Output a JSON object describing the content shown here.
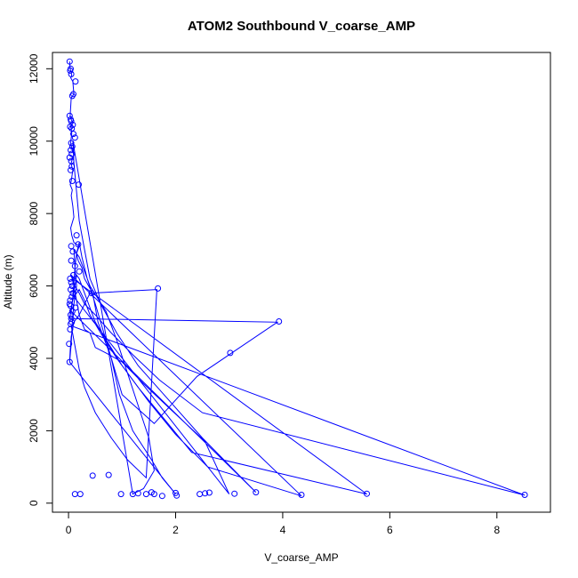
{
  "chart_data": {
    "type": "line",
    "title": "ATOM2 Southbound V_coarse_AMP",
    "xlabel": "V_coarse_AMP",
    "ylabel": "Altitude (m)",
    "xlim": [
      -0.3,
      9.0
    ],
    "ylim": [
      -250,
      12450
    ],
    "xticks": [
      0,
      2,
      4,
      6,
      8
    ],
    "yticks": [
      0,
      2000,
      4000,
      6000,
      8000,
      10000,
      12000
    ],
    "grid": false,
    "series_color": "#0000ff",
    "series": [
      {
        "x": [
          0.02,
          0.03,
          0.05,
          0.06,
          0.04,
          0.08,
          0.1,
          0.05,
          0.03,
          0.05,
          0.08,
          0.04,
          0.05,
          0.06,
          0.05,
          0.04,
          0.06,
          0.08,
          0.1,
          0.07,
          0.05,
          0.06,
          0.08,
          0.05,
          0.03,
          0.07,
          0.05,
          0.08,
          0.1,
          0.04,
          0.06,
          0.1,
          0.2,
          0.15,
          0.18,
          0.25,
          0.3,
          0.45,
          0.55,
          0.8,
          0.95,
          1.2,
          1.55,
          1.75,
          2.0,
          0.02,
          0.05,
          0.07,
          0.1,
          0.15,
          0.12,
          0.1,
          0.2,
          0.3,
          0.4,
          0.7,
          0.9,
          1.1,
          1.3,
          1.5,
          1.6,
          1.4,
          1.2,
          0.08,
          0.1,
          0.15,
          0.2,
          0.3,
          0.4,
          0.6,
          0.9,
          1.3,
          1.9,
          2.5,
          3.1,
          3.5,
          0.05,
          0.08,
          0.1,
          0.12,
          0.15,
          0.2,
          0.25,
          0.35,
          0.5,
          0.7,
          1.0,
          1.6,
          2.4,
          3.9,
          0.02,
          0.05,
          0.1,
          0.15,
          0.2,
          0.3,
          0.5,
          1.0,
          1.5,
          2.0,
          2.6,
          4.35,
          0.05,
          0.1,
          0.15,
          0.2,
          0.3,
          0.4,
          0.5,
          0.7,
          1.0,
          1.4,
          1.9,
          2.55,
          3.0,
          0.1,
          0.2,
          0.3,
          0.4,
          0.6,
          0.9,
          1.3,
          1.8,
          2.3,
          5.57,
          0.08,
          0.12,
          0.2,
          0.3,
          0.5,
          0.8,
          1.2,
          1.7,
          2.5,
          8.52,
          0.05,
          0.1,
          0.15,
          0.2,
          0.3,
          0.5,
          0.8,
          1.1,
          1.45,
          1.65,
          0.4,
          0.2,
          0.1,
          0.05,
          0.03,
          0.02
        ],
        "y": [
          12200,
          12000,
          11900,
          11800,
          11750,
          11650,
          11300,
          11200,
          10700,
          10600,
          10500,
          10400,
          10350,
          10200,
          10100,
          9950,
          9800,
          9700,
          9600,
          9500,
          9400,
          9300,
          9200,
          8900,
          8800,
          8650,
          8500,
          8200,
          7900,
          7600,
          7400,
          7200,
          7100,
          6900,
          6700,
          6500,
          6200,
          5800,
          5000,
          4000,
          3000,
          2000,
          1200,
          700,
          250,
          3900,
          4400,
          5000,
          5500,
          6000,
          6500,
          7000,
          6800,
          6400,
          6000,
          5300,
          4500,
          3600,
          2700,
          1800,
          900,
          400,
          250,
          10000,
          9400,
          8600,
          7800,
          7000,
          6200,
          5500,
          4700,
          3800,
          2800,
          1800,
          900,
          300,
          5300,
          5700,
          6100,
          6500,
          6900,
          7200,
          6800,
          6200,
          5500,
          4500,
          3000,
          2200,
          3500,
          5000,
          5100,
          5400,
          5800,
          6300,
          6200,
          5800,
          5000,
          3800,
          2800,
          1900,
          1000,
          200,
          6300,
          6000,
          5600,
          5200,
          4800,
          4700,
          4300,
          4150,
          3900,
          3300,
          2600,
          1700,
          250,
          5700,
          5900,
          5600,
          5200,
          4700,
          4000,
          3200,
          2300,
          1400,
          250,
          6200,
          6000,
          5800,
          5500,
          5200,
          4700,
          4100,
          3400,
          2500,
          220,
          4900,
          4500,
          4100,
          3700,
          3200,
          2500,
          1800,
          1200,
          700,
          5900,
          5800,
          5200,
          5000,
          4600,
          4200,
          3900
        ]
      }
    ],
    "markers": {
      "x": [
        0.02,
        0.04,
        0.03,
        0.05,
        0.13,
        0.09,
        0.07,
        0.02,
        0.04,
        0.05,
        0.08,
        0.03,
        0.06,
        0.09,
        0.12,
        0.05,
        0.07,
        0.04,
        0.06,
        0.02,
        0.05,
        0.06,
        0.04,
        0.07,
        0.19,
        0.18,
        0.08,
        0.05,
        0.12,
        0.2,
        0.09,
        0.03,
        0.05,
        0.07,
        0.04,
        0.08,
        0.06,
        0.03,
        0.02,
        0.04,
        0.43,
        0.13,
        0.07,
        0.04,
        0.05,
        0.06,
        0.04,
        0.03,
        0.01,
        0.02,
        0.15,
        0.05,
        3.93,
        3.02,
        1.67,
        0.12,
        0.22,
        0.45,
        0.75,
        0.98,
        1.2,
        1.3,
        1.45,
        1.55,
        1.6,
        1.75,
        2.0,
        2.02,
        2.45,
        2.55,
        2.63,
        3.1,
        3.5,
        4.35,
        5.57,
        8.52
      ],
      "y": [
        12200,
        12000,
        11950,
        11850,
        11650,
        11300,
        11250,
        10700,
        10600,
        10550,
        10450,
        10400,
        10350,
        10200,
        10100,
        9950,
        9850,
        9750,
        9650,
        9550,
        9450,
        9300,
        9200,
        8900,
        8800,
        7150,
        6950,
        6700,
        6550,
        6400,
        6300,
        6200,
        6100,
        6000,
        5900,
        5800,
        5700,
        5600,
        5500,
        5450,
        5800,
        5400,
        5300,
        5200,
        5100,
        5000,
        4950,
        4800,
        4400,
        3900,
        7400,
        7100,
        5020,
        4150,
        5930,
        250,
        250,
        760,
        780,
        250,
        250,
        270,
        250,
        300,
        250,
        200,
        280,
        210,
        250,
        270,
        290,
        260,
        300,
        230,
        260,
        230
      ]
    }
  }
}
